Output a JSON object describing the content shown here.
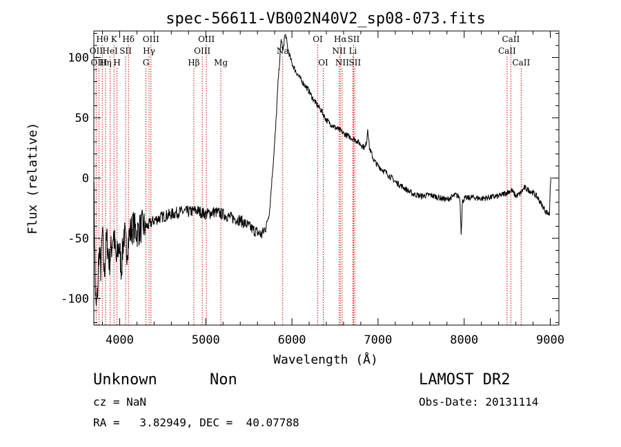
{
  "chart_data": {
    "type": "line",
    "title": "spec-56611-VB002N40V2_sp08-073.fits",
    "xlabel": "Wavelength (Å)",
    "ylabel": "Flux (relative)",
    "xlim": [
      3700,
      9100
    ],
    "ylim": [
      -122,
      122
    ],
    "xticks": [
      4000,
      5000,
      6000,
      7000,
      8000,
      9000
    ],
    "yticks": [
      -100,
      -50,
      0,
      50,
      100
    ],
    "grid": false,
    "series": [
      {
        "x": [
          3700,
          3705,
          3715,
          3725,
          3740,
          3760,
          3780,
          3800,
          3820,
          3850,
          3880,
          3900,
          3930,
          3960,
          3990,
          4020,
          4050,
          4080,
          4120,
          4160,
          4200,
          4260,
          4320,
          4400,
          4500,
          4600,
          4700,
          4800,
          4900,
          5000,
          5100,
          5200,
          5300,
          5400,
          5500,
          5550,
          5600,
          5650,
          5700,
          5740,
          5780,
          5810,
          5840,
          5860,
          5875,
          5885,
          5895,
          5905,
          5915,
          5930,
          5950,
          5980,
          6000,
          6050,
          6100,
          6150,
          6200,
          6250,
          6300,
          6350,
          6400,
          6450,
          6500,
          6550,
          6600,
          6650,
          6700,
          6750,
          6800,
          6850,
          6870,
          6880,
          6900,
          6950,
          7000,
          7100,
          7200,
          7300,
          7400,
          7500,
          7600,
          7700,
          7800,
          7900,
          7950,
          7965,
          7980,
          8000,
          8100,
          8200,
          8300,
          8400,
          8500,
          8550,
          8600,
          8650,
          8700,
          8750,
          8800,
          8850,
          8900,
          8950,
          8990,
          9000,
          9010
        ],
        "y": [
          0,
          -30,
          -85,
          -110,
          -100,
          -60,
          -75,
          -45,
          -80,
          -50,
          -70,
          -60,
          -45,
          -70,
          -55,
          -75,
          -45,
          -60,
          -45,
          -40,
          -45,
          -40,
          -40,
          -35,
          -32,
          -30,
          -28,
          -28,
          -27,
          -30,
          -28,
          -30,
          -33,
          -35,
          -40,
          -43,
          -45,
          -47,
          -40,
          -28,
          10,
          40,
          80,
          100,
          115,
          112,
          105,
          110,
          118,
          118,
          108,
          100,
          95,
          88,
          82,
          77,
          72,
          65,
          60,
          55,
          48,
          45,
          42,
          40,
          37,
          35,
          33,
          31,
          28,
          25,
          32,
          42,
          25,
          15,
          10,
          4,
          -3,
          -8,
          -13,
          -15,
          -14,
          -16,
          -18,
          -14,
          -16,
          -45,
          -20,
          -17,
          -16,
          -17,
          -16,
          -15,
          -12,
          -10,
          -15,
          -13,
          -8,
          -10,
          -12,
          -16,
          -22,
          -28,
          -30,
          -5,
          0
        ]
      }
    ],
    "lines": [
      {
        "label": "Hθ",
        "x": 3798,
        "row": 1
      },
      {
        "label": "OII",
        "x": 3727,
        "row": 2
      },
      {
        "label": "OIII",
        "x": 3760,
        "row": 3
      },
      {
        "label": "K",
        "x": 3934,
        "row": 1
      },
      {
        "label": "HeI",
        "x": 3889,
        "row": 2
      },
      {
        "label": "Hη",
        "x": 3835,
        "row": 3
      },
      {
        "label": "SII",
        "x": 4069,
        "row": 2
      },
      {
        "label": "H",
        "x": 3969,
        "row": 3
      },
      {
        "label": "Hδ",
        "x": 4102,
        "row": 1
      },
      {
        "label": "OIII",
        "x": 4363,
        "row": 1
      },
      {
        "label": "Hγ",
        "x": 4341,
        "row": 2
      },
      {
        "label": "G",
        "x": 4305,
        "row": 3
      },
      {
        "label": "Hβ",
        "x": 4861,
        "row": 3
      },
      {
        "label": "OIII",
        "x": 5007,
        "row": 1
      },
      {
        "label": "OIII",
        "x": 4959,
        "row": 2
      },
      {
        "label": "Mg",
        "x": 5175,
        "row": 3
      },
      {
        "label": "Na",
        "x": 5893,
        "row": 2
      },
      {
        "label": "OI",
        "x": 6300,
        "row": 1
      },
      {
        "label": "OI",
        "x": 6364,
        "row": 3
      },
      {
        "label": "Hα",
        "x": 6563,
        "row": 1
      },
      {
        "label": "NII",
        "x": 6548,
        "row": 2
      },
      {
        "label": "NII",
        "x": 6583,
        "row": 3
      },
      {
        "label": "SII",
        "x": 6716,
        "row": 1
      },
      {
        "label": "Li",
        "x": 6708,
        "row": 2
      },
      {
        "label": "SII",
        "x": 6731,
        "row": 3
      },
      {
        "label": "CaII",
        "x": 8542,
        "row": 1
      },
      {
        "label": "CaII",
        "x": 8498,
        "row": 2
      },
      {
        "label": "CaII",
        "x": 8662,
        "row": 3
      }
    ],
    "line_color": "#cc0000"
  },
  "info": {
    "class": "Unknown",
    "subclass": "Non",
    "survey": "LAMOST DR2",
    "cz": "cz = NaN",
    "obsdate": "Obs-Date: 20131114",
    "radec": "RA =   3.82949, DEC =  40.07788"
  }
}
